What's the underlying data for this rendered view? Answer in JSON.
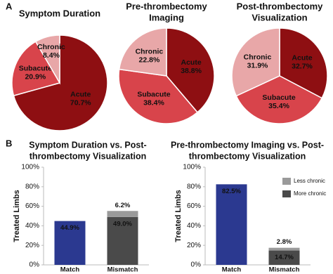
{
  "panels": [
    "A",
    "B"
  ],
  "chart_data": [
    {
      "type": "pie",
      "title": [
        "Symptom Duration"
      ],
      "categories": [
        "Acute",
        "Subacute",
        "Chronic"
      ],
      "values": [
        70.7,
        20.9,
        8.4
      ],
      "value_labels": [
        "70.7%",
        "20.9%",
        "8.4%"
      ],
      "colors": [
        "#8e0f12",
        "#d8444b",
        "#e8a7a8"
      ]
    },
    {
      "type": "pie",
      "title": [
        "Pre-thrombectomy",
        "Imaging"
      ],
      "categories": [
        "Acute",
        "Subacute",
        "Chronic"
      ],
      "values": [
        38.8,
        38.4,
        22.8
      ],
      "value_labels": [
        "38.8%",
        "38.4%",
        "22.8%"
      ],
      "colors": [
        "#8e0f12",
        "#d8444b",
        "#e8a7a8"
      ]
    },
    {
      "type": "pie",
      "title": [
        "Post-thrombectomy",
        "Visualization"
      ],
      "categories": [
        "Acute",
        "Subacute",
        "Chronic"
      ],
      "values": [
        32.7,
        35.4,
        31.9
      ],
      "value_labels": [
        "32.7%",
        "35.4%",
        "31.9%"
      ],
      "colors": [
        "#8e0f12",
        "#d8444b",
        "#e8a7a8"
      ]
    },
    {
      "type": "bar",
      "title": [
        "Symptom Duration vs. Post-",
        "thrombectomy Visualization"
      ],
      "ylabel": "Treated Limbs",
      "categories": [
        "Match",
        "Mismatch"
      ],
      "series": [
        {
          "colors": [
            "#2b3990",
            "#4a4a4a"
          ],
          "values": [
            44.9,
            49.0
          ],
          "value_labels": [
            "44.9%",
            "49.0%"
          ]
        },
        {
          "color": "#9a9a9a",
          "values": [
            null,
            6.2
          ],
          "value_labels": [
            null,
            "6.2%"
          ]
        }
      ],
      "ylim": [
        0,
        100
      ],
      "yticks": [
        {
          "value": 0,
          "label": "0%"
        },
        {
          "value": 20,
          "label": "20%"
        },
        {
          "value": 40,
          "label": "40%"
        },
        {
          "value": 60,
          "label": "60%"
        },
        {
          "value": 80,
          "label": "80%"
        },
        {
          "value": 100,
          "label": "100%"
        }
      ]
    },
    {
      "type": "bar",
      "title": [
        "Pre-thrombectomy Imaging vs. Post-",
        "thrombectomy Visualization"
      ],
      "ylabel": "Treated Limbs",
      "categories": [
        "Match",
        "Mismatch"
      ],
      "series": [
        {
          "name": "More chronic",
          "color": "#4a4a4a",
          "colors": [
            "#2b3990",
            "#4a4a4a"
          ],
          "values": [
            82.5,
            14.7
          ],
          "value_labels": [
            "82.5%",
            "14.7%"
          ]
        },
        {
          "name": "Less chronic",
          "color": "#9a9a9a",
          "values": [
            null,
            2.8
          ],
          "value_labels": [
            null,
            "2.8%"
          ]
        }
      ],
      "ylim": [
        0,
        100
      ],
      "yticks": [
        {
          "value": 0,
          "label": "0%"
        },
        {
          "value": 20,
          "label": "20%"
        },
        {
          "value": 40,
          "label": "40%"
        },
        {
          "value": 60,
          "label": "60%"
        },
        {
          "value": 80,
          "label": "80%"
        },
        {
          "value": 100,
          "label": "100%"
        }
      ]
    }
  ]
}
